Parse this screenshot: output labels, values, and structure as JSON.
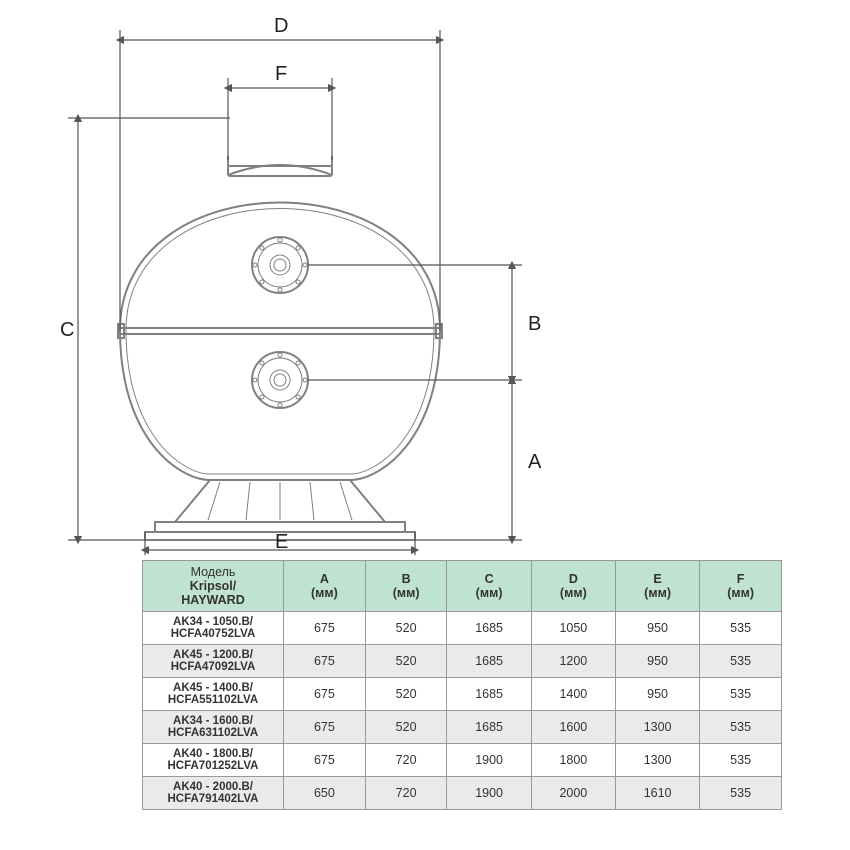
{
  "diagram": {
    "labels": {
      "A": "A",
      "B": "B",
      "C": "C",
      "D": "D",
      "E": "E",
      "F": "F"
    },
    "stroke_main": "#808080",
    "stroke_dim": "#555555",
    "stroke_width_main": 2,
    "stroke_width_dim": 1.2,
    "font_size_dim": 20
  },
  "table": {
    "header_bg": "#bfe3d0",
    "alt_row_bg": "#eaeaea",
    "border_color": "#999999",
    "font_size": 12.5,
    "columns": [
      {
        "line1": "Модель",
        "line2": "Kripsol/",
        "line3": "HAYWARD"
      },
      {
        "line1": "A",
        "line2": "(мм)"
      },
      {
        "line1": "B",
        "line2": "(мм)"
      },
      {
        "line1": "C",
        "line2": "(мм)"
      },
      {
        "line1": "D",
        "line2": "(мм)"
      },
      {
        "line1": "E",
        "line2": "(мм)"
      },
      {
        "line1": "F",
        "line2": "(мм)"
      }
    ],
    "rows": [
      {
        "model_l1": "AK34 - 1050.B/",
        "model_l2": "HCFA40752LVA",
        "A": "675",
        "B": "520",
        "C": "1685",
        "D": "1050",
        "E": "950",
        "F": "535"
      },
      {
        "model_l1": "AK45 - 1200.B/",
        "model_l2": "HCFA47092LVA",
        "A": "675",
        "B": "520",
        "C": "1685",
        "D": "1200",
        "E": "950",
        "F": "535"
      },
      {
        "model_l1": "AK45 - 1400.B/",
        "model_l2": "HCFA551102LVA",
        "A": "675",
        "B": "520",
        "C": "1685",
        "D": "1400",
        "E": "950",
        "F": "535"
      },
      {
        "model_l1": "AK34 - 1600.B/",
        "model_l2": "HCFA631102LVA",
        "A": "675",
        "B": "520",
        "C": "1685",
        "D": "1600",
        "E": "1300",
        "F": "535"
      },
      {
        "model_l1": "AK40 - 1800.B/",
        "model_l2": "HCFA701252LVA",
        "A": "675",
        "B": "720",
        "C": "1900",
        "D": "1800",
        "E": "1300",
        "F": "535"
      },
      {
        "model_l1": "AK40 - 2000.B/",
        "model_l2": "HCFA791402LVA",
        "A": "650",
        "B": "720",
        "C": "1900",
        "D": "2000",
        "E": "1610",
        "F": "535"
      }
    ]
  }
}
